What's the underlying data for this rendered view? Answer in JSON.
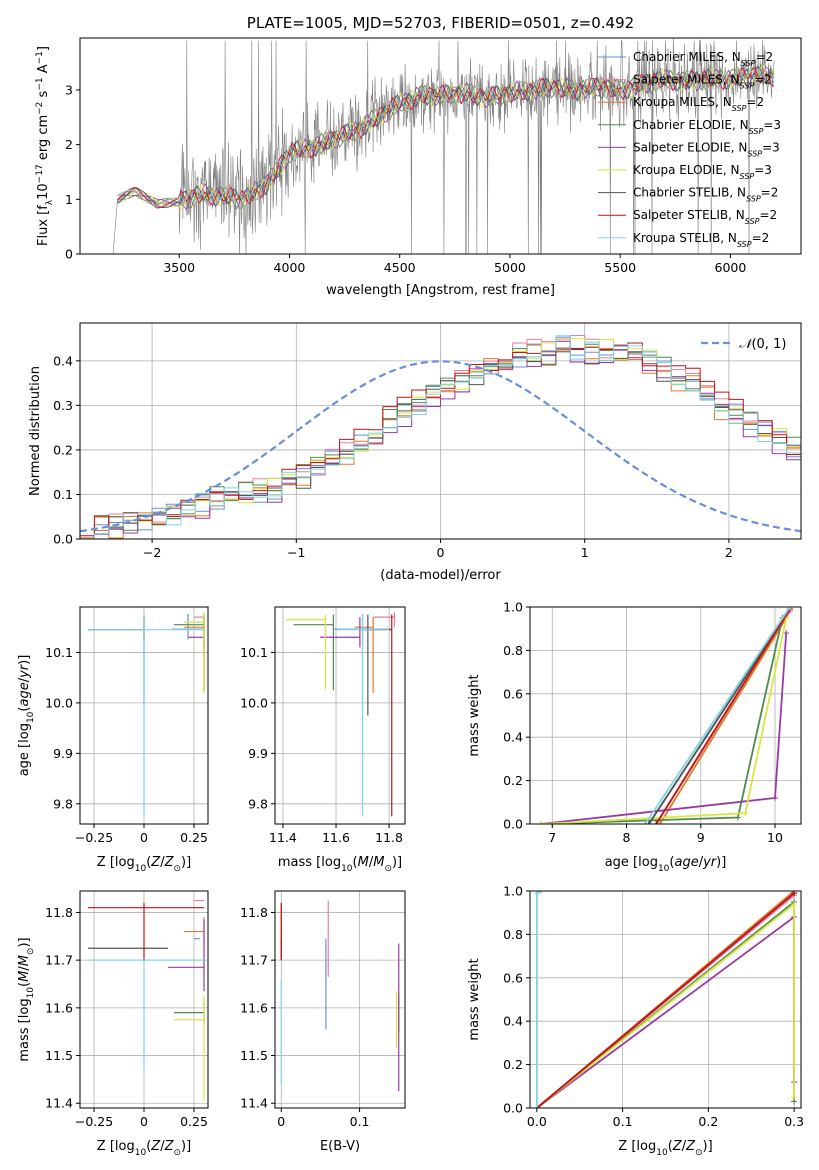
{
  "colors": {
    "Chabrier MILES": "#6a8fd8",
    "Salpeter MILES": "#e67fa6",
    "Kroupa MILES": "#e07b2a",
    "Chabrier ELODIE": "#4e8a4e",
    "Salpeter ELODIE": "#9a3aa8",
    "Kroupa ELODIE": "#d8e640",
    "Chabrier STELIB": "#555555",
    "Salpeter STELIB": "#c41414",
    "Kroupa STELIB": "#7fd6e0",
    "obs": "#808080",
    "normal": "#6a8fd8"
  },
  "chart_data": [
    {
      "id": "spectrum",
      "type": "line",
      "title": "PLATE=1005, MJD=52703, FIBERID=0501, z=0.492",
      "xlabel": "wavelength [Angstrom, rest frame]",
      "ylabel": "Flux [f_λ 10^-17 erg cm^-2 s^-1 A^-1]",
      "xlim": [
        3050,
        6320
      ],
      "ylim": [
        0,
        3.95
      ],
      "xticks": [
        3500,
        4000,
        4500,
        5000,
        5500,
        6000
      ],
      "yticks": [
        0,
        1,
        2,
        3
      ],
      "grid": false,
      "legend_position": "top-right",
      "legend": [
        {
          "name": "Chabrier MILES",
          "n_ssp": "2"
        },
        {
          "name": "Salpeter MILES",
          "n_ssp": "2"
        },
        {
          "name": "Kroupa MILES",
          "n_ssp": "2"
        },
        {
          "name": "Chabrier ELODIE",
          "n_ssp": "3"
        },
        {
          "name": "Salpeter ELODIE",
          "n_ssp": "3"
        },
        {
          "name": "Kroupa ELODIE",
          "n_ssp": "3"
        },
        {
          "name": "Chabrier STELIB",
          "n_ssp": "2"
        },
        {
          "name": "Salpeter STELIB",
          "n_ssp": "2"
        },
        {
          "name": "Kroupa STELIB",
          "n_ssp": "2"
        }
      ],
      "continuum": [
        [
          3220,
          1.0
        ],
        [
          3300,
          1.15
        ],
        [
          3400,
          0.92
        ],
        [
          3500,
          0.95
        ],
        [
          3600,
          1.1
        ],
        [
          3700,
          1.05
        ],
        [
          3800,
          1.0
        ],
        [
          3900,
          1.3
        ],
        [
          3950,
          1.55
        ],
        [
          4000,
          1.85
        ],
        [
          4100,
          1.95
        ],
        [
          4200,
          2.1
        ],
        [
          4300,
          2.25
        ],
        [
          4400,
          2.5
        ],
        [
          4500,
          2.75
        ],
        [
          4600,
          2.9
        ],
        [
          4700,
          2.9
        ],
        [
          4800,
          2.95
        ],
        [
          4900,
          2.85
        ],
        [
          5000,
          2.95
        ],
        [
          5100,
          3.0
        ],
        [
          5200,
          3.05
        ],
        [
          5300,
          3.0
        ],
        [
          5400,
          3.05
        ],
        [
          5500,
          3.0
        ],
        [
          5600,
          3.1
        ],
        [
          5700,
          3.2
        ],
        [
          5800,
          3.15
        ],
        [
          5900,
          3.2
        ],
        [
          6000,
          3.2
        ],
        [
          6100,
          3.25
        ],
        [
          6200,
          3.25
        ]
      ]
    },
    {
      "id": "residuals",
      "type": "histogram",
      "xlabel": "(data-model)/error",
      "ylabel": "Normed distribution",
      "xlim": [
        -2.5,
        2.5
      ],
      "ylim": [
        0,
        0.485
      ],
      "xticks": [
        -2,
        -1,
        0,
        1,
        2
      ],
      "yticks": [
        0.0,
        0.1,
        0.2,
        0.3,
        0.4
      ],
      "grid": true,
      "legend_position": "top-right",
      "legend": [
        {
          "name": "N(0,1)",
          "style": "dashed"
        }
      ],
      "bin_width": 0.1,
      "bins_start": -2.5,
      "values": [
        0.02,
        0.025,
        0.03,
        0.035,
        0.045,
        0.05,
        0.055,
        0.065,
        0.08,
        0.09,
        0.09,
        0.1,
        0.105,
        0.11,
        0.13,
        0.14,
        0.16,
        0.18,
        0.19,
        0.21,
        0.23,
        0.265,
        0.285,
        0.3,
        0.32,
        0.34,
        0.35,
        0.37,
        0.39,
        0.41,
        0.41,
        0.42,
        0.42,
        0.43,
        0.425,
        0.42,
        0.42,
        0.415,
        0.41,
        0.4,
        0.38,
        0.36,
        0.35,
        0.33,
        0.3,
        0.28,
        0.26,
        0.24,
        0.22,
        0.2,
        0.18,
        0.17,
        0.15,
        0.14,
        0.13,
        0.11,
        0.1,
        0.09,
        0.085,
        0.08,
        0.075,
        0.07,
        0.065,
        0.06,
        0.055,
        0.05,
        0.045,
        0.04,
        0.035,
        0.035
      ],
      "offsets": [
        0,
        0.02,
        -0.018,
        0.01,
        -0.025,
        0.015,
        -0.01,
        0.03,
        0.005
      ]
    },
    {
      "id": "age-vs-Z",
      "type": "errorbar",
      "xlabel": "Z [log10(Z/Z⊙)]",
      "ylabel": "age [log10(age/yr)]",
      "xlim": [
        -0.32,
        0.32
      ],
      "ylim": [
        9.76,
        10.19
      ],
      "xticks": [
        -0.25,
        0.0,
        0.25
      ],
      "yticks": [
        9.8,
        9.9,
        10.0,
        10.1
      ],
      "grid": true,
      "points": [
        {
          "series": "Chabrier MILES",
          "x": 0.22,
          "y": 10.146,
          "xerr": [
            0.08,
            0.08
          ],
          "yerr": [
            0.02,
            0.03
          ]
        },
        {
          "series": "Salpeter MILES",
          "x": 0.3,
          "y": 10.17,
          "xerr": [
            0.05,
            0.0
          ],
          "yerr": [
            0.02,
            0.01
          ]
        },
        {
          "series": "Kroupa MILES",
          "x": 0.3,
          "y": 10.15,
          "xerr": [
            0.1,
            0.0
          ],
          "yerr": [
            0.13,
            0.02
          ]
        },
        {
          "series": "Chabrier ELODIE",
          "x": 0.3,
          "y": 10.155,
          "xerr": [
            0.15,
            0.0
          ],
          "yerr": [
            0.13,
            0.02
          ]
        },
        {
          "series": "Salpeter ELODIE",
          "x": 0.3,
          "y": 10.13,
          "xerr": [
            0.08,
            0.0
          ],
          "yerr": [
            0.02,
            0.04
          ]
        },
        {
          "series": "Kroupa ELODIE",
          "x": 0.3,
          "y": 10.16,
          "xerr": [
            0.1,
            0.0
          ],
          "yerr": [
            0.14,
            0.02
          ]
        },
        {
          "series": "Chabrier STELIB",
          "x": 0.0,
          "y": 10.145,
          "xerr": [
            0.28,
            0.0
          ],
          "yerr": [
            0.15,
            0.03
          ]
        },
        {
          "series": "Salpeter STELIB",
          "x": 0.0,
          "y": 10.145,
          "xerr": [
            0.0,
            0.0
          ],
          "yerr": [
            0.02,
            0.02
          ]
        },
        {
          "series": "Kroupa STELIB",
          "x": 0.0,
          "y": 10.145,
          "xerr": [
            0.28,
            0.3
          ],
          "yerr": [
            0.37,
            0.03
          ]
        }
      ]
    },
    {
      "id": "age-vs-mass",
      "type": "errorbar",
      "xlabel": "mass [log10(M/M⊙)]",
      "ylabel": "",
      "xlim": [
        11.37,
        11.86
      ],
      "ylim": [
        9.76,
        10.19
      ],
      "xticks": [
        11.4,
        11.6,
        11.8
      ],
      "yticks": [
        9.8,
        9.9,
        10.0,
        10.1
      ],
      "grid": true,
      "points": [
        {
          "series": "Chabrier MILES",
          "x": 11.7,
          "y": 10.146,
          "xerr": [
            0.11,
            0.11
          ],
          "yerr": [
            0.03,
            0.03
          ]
        },
        {
          "series": "Salpeter MILES",
          "x": 11.82,
          "y": 10.17,
          "xerr": [
            0.08,
            0.0
          ],
          "yerr": [
            0.02,
            0.01
          ]
        },
        {
          "series": "Kroupa MILES",
          "x": 11.74,
          "y": 10.15,
          "xerr": [
            0.07,
            0.0
          ],
          "yerr": [
            0.13,
            0.02
          ]
        },
        {
          "series": "Chabrier ELODIE",
          "x": 11.59,
          "y": 10.155,
          "xerr": [
            0.15,
            0.0
          ],
          "yerr": [
            0.13,
            0.02
          ]
        },
        {
          "series": "Salpeter ELODIE",
          "x": 11.69,
          "y": 10.13,
          "xerr": [
            0.15,
            0.0
          ],
          "yerr": [
            0.02,
            0.04
          ]
        },
        {
          "series": "Kroupa ELODIE",
          "x": 11.56,
          "y": 10.165,
          "xerr": [
            0.15,
            0.0
          ],
          "yerr": [
            0.14,
            0.01
          ]
        },
        {
          "series": "Chabrier STELIB",
          "x": 11.72,
          "y": 10.145,
          "xerr": [
            0.03,
            0.03
          ],
          "yerr": [
            0.17,
            0.03
          ]
        },
        {
          "series": "Salpeter STELIB",
          "x": 11.81,
          "y": 10.145,
          "xerr": [
            0.08,
            0.0
          ],
          "yerr": [
            0.37,
            0.03
          ]
        },
        {
          "series": "Kroupa STELIB",
          "x": 11.7,
          "y": 10.145,
          "xerr": [
            0.1,
            0.1
          ],
          "yerr": [
            0.37,
            0.03
          ]
        }
      ]
    },
    {
      "id": "weight-vs-age",
      "type": "line",
      "xlabel": "age [log10(age/yr)]",
      "ylabel": "mass weight",
      "xlim": [
        6.7,
        10.35
      ],
      "ylim": [
        0,
        1.0
      ],
      "xticks": [
        7,
        8,
        9,
        10
      ],
      "yticks": [
        0.0,
        0.2,
        0.4,
        0.6,
        0.8,
        1.0
      ],
      "grid": true,
      "series": [
        {
          "name": "Chabrier MILES",
          "x": [
            8.3,
            10.2
          ],
          "y": [
            0.0,
            0.99
          ]
        },
        {
          "name": "Salpeter MILES",
          "x": [
            8.4,
            10.2
          ],
          "y": [
            0.0,
            0.98
          ]
        },
        {
          "name": "Kroupa MILES",
          "x": [
            8.45,
            10.15
          ],
          "y": [
            0.0,
            0.95
          ]
        },
        {
          "name": "Chabrier ELODIE",
          "x": [
            6.85,
            9.5,
            10.1
          ],
          "y": [
            0.0,
            0.03,
            0.95
          ]
        },
        {
          "name": "Salpeter ELODIE",
          "x": [
            6.85,
            10.0,
            10.15
          ],
          "y": [
            0.0,
            0.12,
            0.88
          ]
        },
        {
          "name": "Kroupa ELODIE",
          "x": [
            6.85,
            9.6,
            10.15
          ],
          "y": [
            0.0,
            0.05,
            0.95
          ]
        },
        {
          "name": "Chabrier STELIB",
          "x": [
            8.3,
            10.2
          ],
          "y": [
            0.0,
            0.99
          ]
        },
        {
          "name": "Salpeter STELIB",
          "x": [
            8.4,
            10.2
          ],
          "y": [
            0.0,
            0.99
          ]
        },
        {
          "name": "Kroupa STELIB",
          "x": [
            8.25,
            10.2
          ],
          "y": [
            0.0,
            1.0
          ]
        }
      ]
    },
    {
      "id": "mass-vs-Z",
      "type": "errorbar",
      "xlabel": "Z [log10(Z/Z⊙)]",
      "ylabel": "mass [log10(M/M⊙)]",
      "xlim": [
        -0.32,
        0.32
      ],
      "ylim": [
        11.39,
        11.845
      ],
      "xticks": [
        -0.25,
        0.0,
        0.25
      ],
      "yticks": [
        11.4,
        11.5,
        11.6,
        11.7,
        11.8
      ],
      "grid": true,
      "points": [
        {
          "series": "Chabrier MILES",
          "x": 0.28,
          "y": 11.745,
          "xerr": [
            0.03,
            0.0
          ],
          "yerr": [
            0.0,
            0.0
          ]
        },
        {
          "series": "Salpeter MILES",
          "x": 0.3,
          "y": 11.825,
          "xerr": [
            0.05,
            0.0
          ],
          "yerr": [
            0.0,
            0.0
          ]
        },
        {
          "series": "Kroupa MILES",
          "x": 0.3,
          "y": 11.76,
          "xerr": [
            0.1,
            0.0
          ],
          "yerr": [
            0.03,
            0.03
          ]
        },
        {
          "series": "Chabrier ELODIE",
          "x": 0.3,
          "y": 11.59,
          "xerr": [
            0.15,
            0.0
          ],
          "yerr": [
            0.02,
            0.02
          ]
        },
        {
          "series": "Salpeter ELODIE",
          "x": 0.3,
          "y": 11.685,
          "xerr": [
            0.18,
            0.0
          ],
          "yerr": [
            0.05,
            0.1
          ]
        },
        {
          "series": "Kroupa ELODIE",
          "x": 0.3,
          "y": 11.575,
          "xerr": [
            0.15,
            0.0
          ],
          "yerr": [
            0.17,
            0.05
          ]
        },
        {
          "series": "Chabrier STELIB",
          "x": 0.0,
          "y": 11.725,
          "xerr": [
            0.28,
            0.12
          ],
          "yerr": [
            0.0,
            0.0
          ]
        },
        {
          "series": "Salpeter STELIB",
          "x": 0.0,
          "y": 11.81,
          "xerr": [
            0.28,
            0.3
          ],
          "yerr": [
            0.11,
            0.01
          ]
        },
        {
          "series": "Kroupa STELIB",
          "x": 0.0,
          "y": 11.7,
          "xerr": [
            0.28,
            0.3
          ],
          "yerr": [
            0.23,
            0.0
          ]
        }
      ]
    },
    {
      "id": "mass-vs-ebv",
      "type": "errorbar",
      "xlabel": "E(B-V)",
      "ylabel": "",
      "xlim": [
        -0.008,
        0.158
      ],
      "ylim": [
        11.39,
        11.845
      ],
      "xticks": [
        0.0,
        0.1
      ],
      "yticks": [
        11.4,
        11.5,
        11.6,
        11.7,
        11.8
      ],
      "grid": true,
      "points": [
        {
          "series": "Chabrier MILES",
          "x": 0.057,
          "y": 11.65,
          "xerr": [
            0,
            0
          ],
          "yerr": [
            0.095,
            0.095
          ]
        },
        {
          "series": "Salpeter MILES",
          "x": 0.06,
          "y": 11.745,
          "xerr": [
            0,
            0
          ],
          "yerr": [
            0.08,
            0.08
          ]
        },
        {
          "series": "Kroupa MILES",
          "x": 0.0,
          "y": 11.76,
          "xerr": [
            0,
            0
          ],
          "yerr": [
            0.06,
            0.06
          ]
        },
        {
          "series": "Chabrier ELODIE",
          "x": 0.15,
          "y": 11.59,
          "xerr": [
            0,
            0
          ],
          "yerr": [
            0.04,
            0.04
          ]
        },
        {
          "series": "Salpeter ELODIE",
          "x": 0.15,
          "y": 11.58,
          "xerr": [
            0,
            0
          ],
          "yerr": [
            0.155,
            0.155
          ]
        },
        {
          "series": "Kroupa ELODIE",
          "x": 0.147,
          "y": 11.575,
          "xerr": [
            0,
            0
          ],
          "yerr": [
            0.06,
            0.06
          ]
        },
        {
          "series": "Chabrier STELIB",
          "x": 0.0,
          "y": 11.725,
          "xerr": [
            0,
            0
          ],
          "yerr": [
            0.02,
            0.02
          ]
        },
        {
          "series": "Salpeter STELIB",
          "x": 0.0,
          "y": 11.76,
          "xerr": [
            0,
            0
          ],
          "yerr": [
            0.06,
            0.06
          ]
        },
        {
          "series": "Kroupa STELIB",
          "x": 0.0,
          "y": 11.55,
          "xerr": [
            0,
            0
          ],
          "yerr": [
            0.11,
            0.11
          ]
        }
      ]
    },
    {
      "id": "weight-vs-Z",
      "type": "line",
      "xlabel": "Z [log10(Z/Z⊙)]",
      "ylabel": "mass weight",
      "xlim": [
        -0.008,
        0.308
      ],
      "ylim": [
        0,
        1.0
      ],
      "xticks": [
        0.0,
        0.1,
        0.2,
        0.3
      ],
      "yticks": [
        0.0,
        0.2,
        0.4,
        0.6,
        0.8,
        1.0
      ],
      "grid": true,
      "series": [
        {
          "name": "Chabrier MILES",
          "x": [
            0.0,
            0.3
          ],
          "y": [
            0.0,
            0.99
          ]
        },
        {
          "name": "Salpeter MILES",
          "x": [
            0.0,
            0.3
          ],
          "y": [
            0.0,
            0.98
          ]
        },
        {
          "name": "Kroupa MILES",
          "x": [
            0.0,
            0.3
          ],
          "y": [
            0.0,
            1.0
          ]
        },
        {
          "name": "Chabrier ELODIE",
          "x": [
            0.0,
            0.3,
            0.3
          ],
          "y": [
            0.0,
            0.95,
            0.03
          ]
        },
        {
          "name": "Salpeter ELODIE",
          "x": [
            0.0,
            0.3,
            0.3
          ],
          "y": [
            0.0,
            0.88,
            0.12
          ]
        },
        {
          "name": "Kroupa ELODIE",
          "x": [
            0.0,
            0.3,
            0.3
          ],
          "y": [
            0.0,
            0.94,
            0.05
          ]
        },
        {
          "name": "Chabrier STELIB",
          "x": [
            0.0,
            0.3
          ],
          "y": [
            0.0,
            0.99
          ]
        },
        {
          "name": "Salpeter STELIB",
          "x": [
            0.0,
            0.3
          ],
          "y": [
            0.0,
            0.99
          ]
        },
        {
          "name": "Kroupa STELIB",
          "x": [
            0.0,
            0.0,
            0.005
          ],
          "y": [
            0.0,
            0.99,
            1.0
          ]
        }
      ]
    }
  ]
}
